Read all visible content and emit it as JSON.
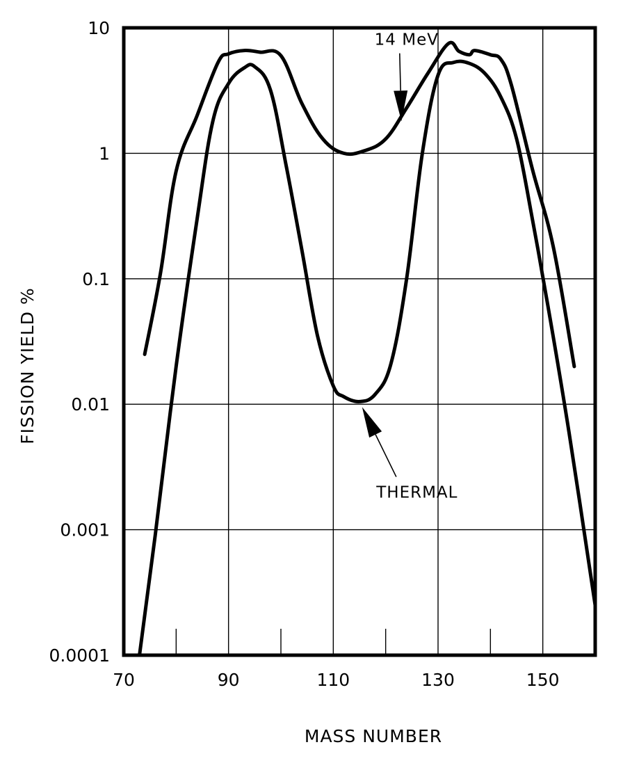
{
  "chart_data": {
    "type": "line",
    "xlabel": "MASS NUMBER",
    "ylabel": "FISSION YIELD %",
    "xlim": [
      70,
      160
    ],
    "ylim": [
      0.0001,
      10
    ],
    "yscale": "log",
    "grid": true,
    "legend": "none",
    "x_ticks": [
      {
        "value": 70,
        "label": "70"
      },
      {
        "value": 90,
        "label": "90"
      },
      {
        "value": 110,
        "label": "110"
      },
      {
        "value": 130,
        "label": "130"
      },
      {
        "value": 150,
        "label": "150"
      }
    ],
    "x_minor_ticks": [
      80,
      100,
      120,
      140
    ],
    "y_ticks": [
      {
        "value": 0.0001,
        "label": "0.0001"
      },
      {
        "value": 0.001,
        "label": "0.001"
      },
      {
        "value": 0.01,
        "label": "0.01"
      },
      {
        "value": 0.1,
        "label": "0.1"
      },
      {
        "value": 1,
        "label": "1"
      },
      {
        "value": 10,
        "label": "10"
      }
    ],
    "series": [
      {
        "name": "14 MeV",
        "x": [
          74,
          77,
          80,
          84,
          88,
          90,
          93,
          96,
          100,
          104,
          108,
          112,
          116,
          120,
          124,
          128,
          132,
          134,
          136,
          137,
          140,
          142,
          144,
          148,
          152,
          156
        ],
        "y": [
          0.025,
          0.11,
          0.72,
          2,
          5.3,
          6.2,
          6.6,
          6.4,
          6.0,
          2.5,
          1.3,
          1.0,
          1.05,
          1.3,
          2.3,
          4.3,
          7.5,
          6.5,
          6.1,
          6.6,
          6.1,
          5.6,
          3.5,
          0.75,
          0.18,
          0.02
        ]
      },
      {
        "name": "THERMAL",
        "x": [
          73,
          76,
          80,
          84,
          87,
          90,
          93,
          95,
          98,
          101,
          104,
          107,
          110,
          112,
          115,
          118,
          121,
          124,
          127,
          130,
          133,
          136,
          139,
          142,
          145,
          148,
          151,
          155,
          160
        ],
        "y": [
          0.0001,
          0.0009,
          0.02,
          0.3,
          1.8,
          3.6,
          4.8,
          4.9,
          3.2,
          0.8,
          0.17,
          0.035,
          0.014,
          0.0115,
          0.0105,
          0.012,
          0.021,
          0.1,
          1.0,
          4.2,
          5.3,
          5.2,
          4.3,
          2.8,
          1.3,
          0.3,
          0.06,
          0.006,
          0.00025
        ]
      }
    ],
    "annotations": [
      {
        "label": "14 MeV",
        "series": "14 MeV",
        "x": 123,
        "y": 1.8,
        "text_x": 124,
        "text_y": 7.3
      },
      {
        "label": "THERMAL",
        "series": "THERMAL",
        "x": 115.5,
        "y": 0.0095,
        "text_x": 126,
        "text_y": 0.0018
      }
    ]
  }
}
